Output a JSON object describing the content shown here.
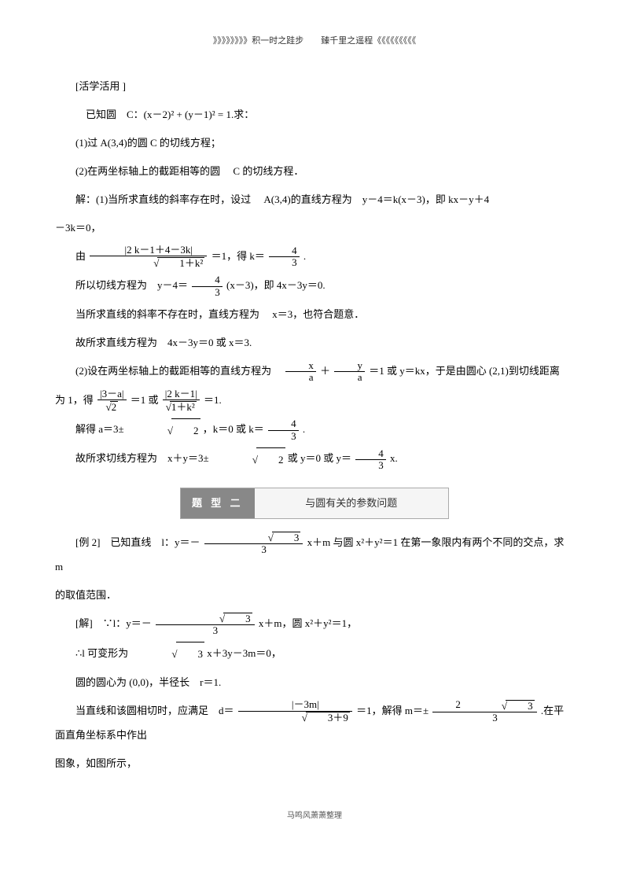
{
  "header": "》》》》》》》》积一时之跬步　　臻千里之遥程《《《《《《《《《",
  "footer": "马鸣风萧萧整理",
  "p1": "[活学活用 ]",
  "p2": "已知圆　C：(x－2)² + (y－1)² = 1.求：",
  "p3": "(1)过 A(3,4)的圆 C 的切线方程；",
  "p4": "(2)在两坐标轴上的截距相等的圆　 C 的切线方程．",
  "p5": "解：(1)当所求直线的斜率存在时，设过　 A(3,4)的直线方程为　y－4＝k(x－3)，即 kx－y＋4",
  "p6": "－3k＝0，",
  "p7a": "由",
  "frac1_num": "|2 k－1＋4－3k|",
  "frac1_den_sqrt": "1＋k²",
  "p7b": "＝1，得 k＝",
  "frac_k_num": "4",
  "frac_k_den": "3",
  "p7c": ".",
  "p8a": "所以切线方程为　y－4＝",
  "frac2_num": "4",
  "frac2_den": "3",
  "p8b": "(x－3)，即 4x－3y＝0.",
  "p9": "当所求直线的斜率不存在时，直线方程为　 x＝3，也符合题意．",
  "p10": "故所求直线方程为　4x－3y＝0 或 x＝3.",
  "p11a": "(2)设在两坐标轴上的截距相等的直线方程为　",
  "frac3_num": "x",
  "frac3_den": "a",
  "p11b": "＋",
  "frac4_num": "y",
  "frac4_den": "a",
  "p11c": "＝1 或 y＝kx，于是由圆心 (2,1)到切线距离",
  "p12a": "为 1，得",
  "frac5_num": "|3－a|",
  "frac5_den_sqrt": "2",
  "p12b": "＝1 或",
  "frac6_num": "|2 k－1|",
  "frac6_den_sqrt": "1＋k²",
  "p12c": "＝1.",
  "p13a": "解得 a＝3±",
  "sqrt2": "2",
  "p13b": "，k＝0 或 k＝",
  "frac7_num": "4",
  "frac7_den": "3",
  "p13c": ".",
  "p14a": "故所求切线方程为　x＋y＝3±",
  "p14b": "或 y＝0 或 y＝",
  "frac8_num": "4",
  "frac8_den": "3",
  "p14c": "x.",
  "banner_left": "题 型 二",
  "banner_right": "与圆有关的参数问题",
  "p15a": "[例 2]　已知直线　l：y＝－",
  "frac_sqrt3_num": "3",
  "frac_sqrt3_den": "3",
  "p15b": "x＋m 与圆 x²＋y²＝1 在第一象限内有两个不同的交点，求　m",
  "p16": "的取值范围．",
  "p17a": "[解]　∵l：y＝－",
  "p17b": "x＋m，圆 x²＋y²＝1，",
  "p18a": "∴l 可变形为",
  "sqrt3": "3",
  "p18b": "x＋3y－3m＝0，",
  "p19": "圆的圆心为 (0,0)，半径长　r＝1.",
  "p20a": "当直线和该圆相切时，应满足　d＝",
  "frac9_num": "|－3m|",
  "frac9_den_sqrt": "3＋9",
  "p20b": "＝1，解得 m＝±",
  "frac10_num_sqrt": "3",
  "frac10_num_coef": "2",
  "frac10_den": "3",
  "p20c": ".在平面直角坐标系中作出",
  "p21": "图象，如图所示，"
}
